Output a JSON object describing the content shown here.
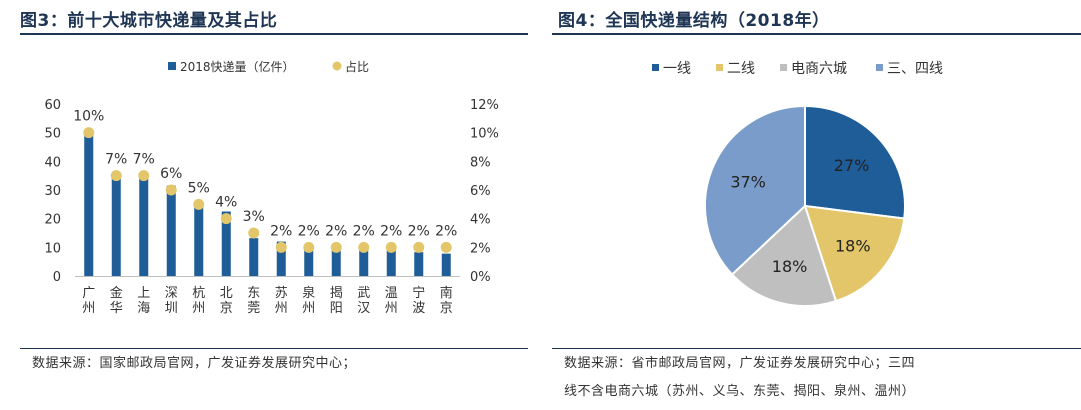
{
  "left": {
    "title": "图3：前十大城市快递量及其占比",
    "source": "数据来源：国家邮政局官网，广发证券发展研究中心；"
  },
  "right": {
    "title": "图4：全国快递量结构（2018年）",
    "source_line1": "数据来源：省市邮政局官网，广发证券发展研究中心；三四",
    "source_line2": "线不含电商六城（苏州、义乌、东莞、揭阳、泉州、温州）"
  },
  "chart_data": [
    {
      "type": "bar",
      "categories": [
        "广州",
        "金华",
        "上海",
        "深圳",
        "杭州",
        "北京",
        "东莞",
        "苏州",
        "泉州",
        "揭阳",
        "武汉",
        "温州",
        "宁波",
        "南京"
      ],
      "series": [
        {
          "name": "2018快递量（亿件）",
          "kind": "bar",
          "axis": "left",
          "values": [
            50.6,
            35.9,
            34.6,
            31.5,
            25.6,
            22.5,
            13.2,
            12.0,
            9.7,
            9.6,
            9.3,
            9.1,
            8.3,
            7.8
          ]
        },
        {
          "name": "占比",
          "kind": "marker",
          "axis": "right",
          "values": [
            10,
            7,
            7,
            6,
            5,
            4,
            3,
            2,
            2,
            2,
            2,
            2,
            2,
            2
          ],
          "labels": [
            "10%",
            "7%",
            "7%",
            "6%",
            "5%",
            "4%",
            "3%",
            "2%",
            "2%",
            "2%",
            "2%",
            "2%",
            "2%",
            "2%"
          ]
        }
      ],
      "ylim": [
        0,
        60
      ],
      "yticks": [
        "0",
        "10",
        "20",
        "30",
        "40",
        "50",
        "60"
      ],
      "y2lim": [
        0,
        12
      ],
      "y2ticks": [
        "0%",
        "2%",
        "4%",
        "6%",
        "8%",
        "10%",
        "12%"
      ],
      "legend_position": "top",
      "grid": false,
      "colors": {
        "bar": "#1f5d99",
        "marker": "#e3c66a"
      }
    },
    {
      "type": "pie",
      "labels": [
        "一线",
        "二线",
        "电商六城",
        "三、四线"
      ],
      "values": [
        27,
        18,
        18,
        37
      ],
      "value_labels": [
        "27%",
        "18%",
        "18%",
        "37%"
      ],
      "colors": [
        "#1f5d99",
        "#e3c66a",
        "#bfbfbf",
        "#7a9cca"
      ],
      "legend_position": "top"
    }
  ]
}
